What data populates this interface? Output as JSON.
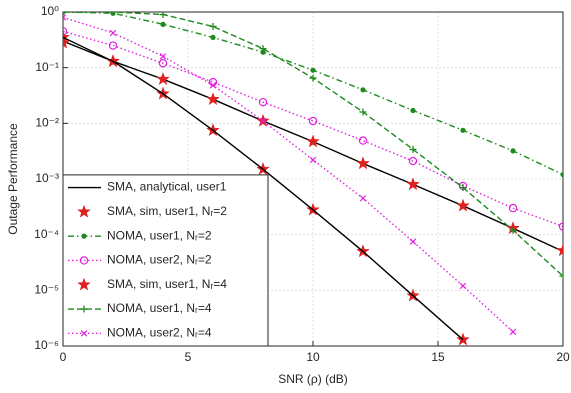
{
  "chart_data": {
    "type": "line",
    "x_label": "SNR (ρ) (dB)",
    "y_label": "Outage Performance",
    "log_y": true,
    "grid": true,
    "legend_position": "lower left",
    "xlim": [
      0,
      20
    ],
    "ylim": [
      1e-06,
      1
    ],
    "xticks": [
      0,
      5,
      10,
      15,
      20
    ],
    "yticks": [
      {
        "value": 1e-06,
        "label": "10⁻⁶"
      },
      {
        "value": 1e-05,
        "label": "10⁻⁵"
      },
      {
        "value": 0.0001,
        "label": "10⁻⁴"
      },
      {
        "value": 0.001,
        "label": "10⁻³"
      },
      {
        "value": 0.01,
        "label": "10⁻²"
      },
      {
        "value": 0.1,
        "label": "10⁻¹"
      },
      {
        "value": 1,
        "label": "10⁰"
      }
    ],
    "x": [
      0,
      2,
      4,
      6,
      8,
      10,
      12,
      14,
      16,
      18,
      20
    ],
    "series": [
      {
        "name": "SMA, analytical, user1",
        "color": "#000000",
        "dash": "solid",
        "marker": "none",
        "values": [
          0.3,
          0.13,
          0.062,
          0.027,
          0.011,
          0.0047,
          0.0019,
          0.0008,
          0.00033,
          0.00013,
          5e-05
        ]
      },
      {
        "name": "SMA, sim, user1, Nᵣ=2",
        "color": "#e02020",
        "dash": "none",
        "marker": "star",
        "values": [
          0.28,
          0.13,
          0.062,
          0.027,
          0.011,
          0.0047,
          0.0019,
          0.0008,
          0.00033,
          0.00013,
          5.2e-05
        ]
      },
      {
        "name": "NOMA, user1, Nᵣ=2",
        "color": "#1e8a1e",
        "dash": "dashdot",
        "marker": "dot",
        "values": [
          1.0,
          0.95,
          0.6,
          0.35,
          0.19,
          0.09,
          0.04,
          0.017,
          0.0075,
          0.0032,
          0.0012
        ]
      },
      {
        "name": "NOMA, user2, Nᵣ=2",
        "color": "#e020e0",
        "dash": "dotted",
        "marker": "circle",
        "values": [
          0.45,
          0.25,
          0.12,
          0.055,
          0.024,
          0.011,
          0.0049,
          0.0021,
          0.00075,
          0.0003,
          0.00014
        ]
      },
      {
        "name": "SMA, sim, user1, Nᵣ=4",
        "color": "#e02020",
        "dash": "none",
        "marker": "star",
        "values": [
          0.35,
          0.13,
          0.034,
          0.0075,
          0.0015,
          0.00028,
          5e-05,
          8e-06,
          1.3e-06,
          null,
          null
        ]
      },
      {
        "name": "NOMA, user1, Nᵣ=4",
        "color": "#1e8a1e",
        "dash": "dashed",
        "marker": "plus",
        "values": [
          1.0,
          1.0,
          0.9,
          0.55,
          0.22,
          0.065,
          0.016,
          0.0034,
          0.0007,
          0.00012,
          1.8e-05
        ]
      },
      {
        "name": "NOMA, user2, Nᵣ=4",
        "color": "#e020e0",
        "dash": "dotted",
        "marker": "x",
        "values": [
          0.8,
          0.42,
          0.16,
          0.048,
          0.011,
          0.0022,
          0.00045,
          7.5e-05,
          1.2e-05,
          1.8e-06,
          null
        ]
      },
      {
        "color": "#000000",
        "dash": "solid",
        "marker": "none",
        "values": [
          0.35,
          0.13,
          0.034,
          0.0075,
          0.0015,
          0.00028,
          5e-05,
          8e-06,
          1.3e-06,
          null,
          null
        ]
      }
    ]
  }
}
